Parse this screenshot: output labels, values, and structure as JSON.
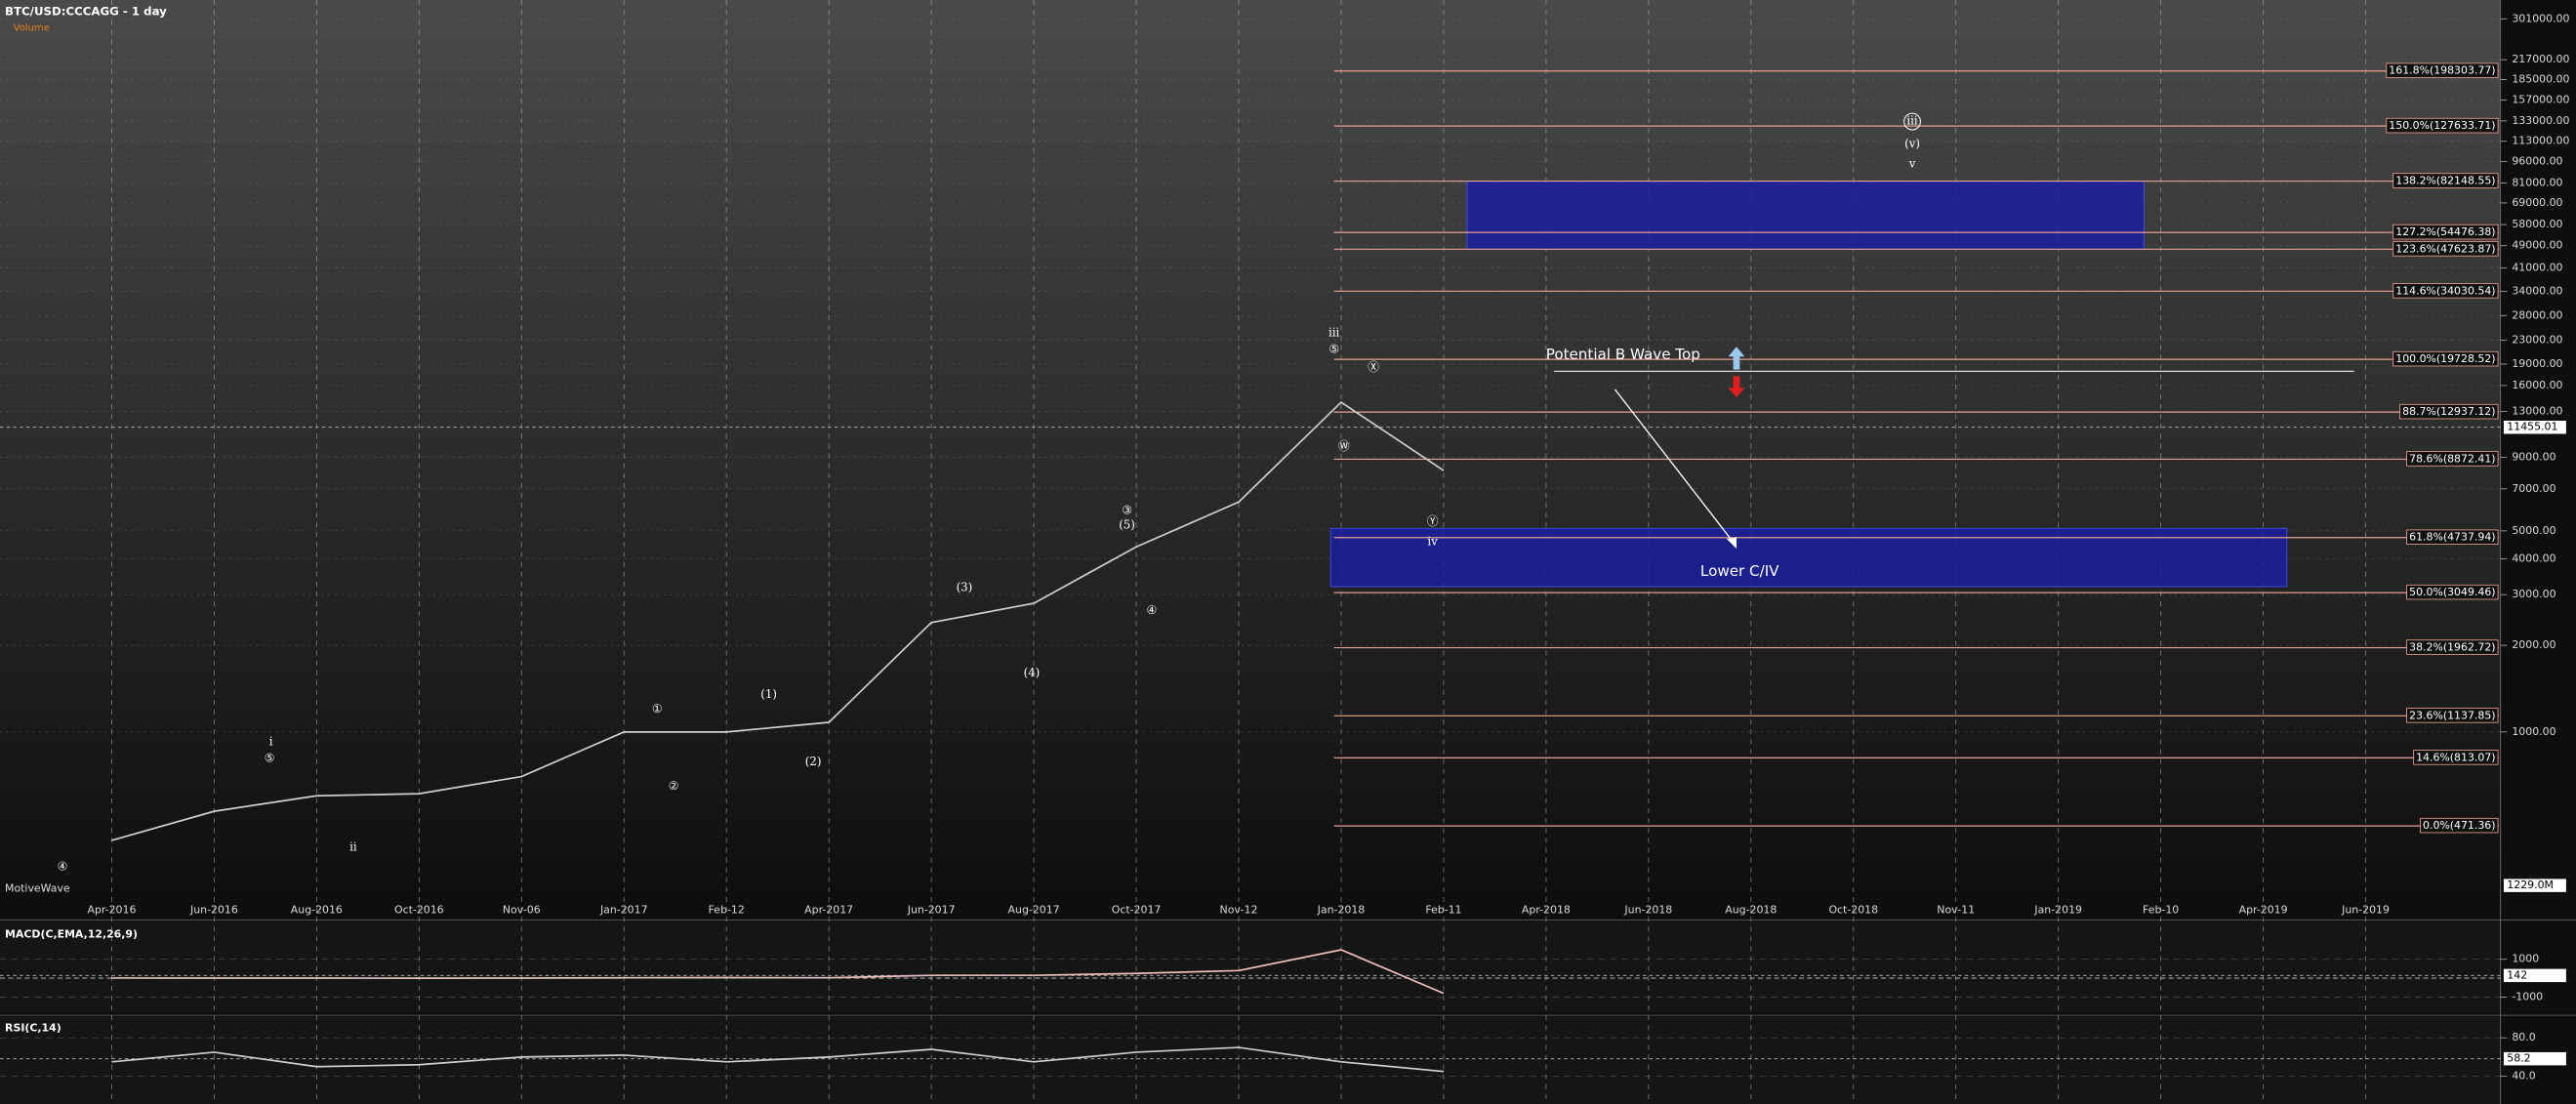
{
  "chart_data": [
    {
      "type": "line",
      "title": "BTC/USD:CCCAGG - 1 day",
      "subtitle": "Volume",
      "watermark": "MotiveWave",
      "categories": [
        "Apr-2016",
        "Jun-2016",
        "Aug-2016",
        "Oct-2016",
        "Nov-06",
        "Jan-2017",
        "Feb-12",
        "Apr-2017",
        "Jun-2017",
        "Aug-2017",
        "Oct-2017",
        "Nov-12",
        "Jan-2018",
        "Feb-11",
        "Apr-2018",
        "Jun-2018",
        "Aug-2018",
        "Oct-2018",
        "Nov-11",
        "Jan-2019",
        "Feb-10",
        "Apr-2019",
        "Jun-2019"
      ],
      "values": [
        420,
        530,
        600,
        610,
        700,
        1000,
        1000,
        1080,
        2400,
        2800,
        4400,
        6300,
        14000,
        8100,
        null,
        null,
        null,
        null,
        null,
        null,
        null,
        null,
        null
      ],
      "color": "#d0d0d0",
      "log_scale": true,
      "grid": true,
      "ylim": [
        260,
        350000
      ],
      "yticks": [
        {
          "value": 301000,
          "label": "301000.00"
        },
        {
          "value": 217000,
          "label": "217000.00"
        },
        {
          "value": 185000,
          "label": "185000.00"
        },
        {
          "value": 157000,
          "label": "157000.00"
        },
        {
          "value": 133000,
          "label": "133000.00"
        },
        {
          "value": 113000,
          "label": "113000.00"
        },
        {
          "value": 96000,
          "label": "96000.00"
        },
        {
          "value": 81000,
          "label": "81000.00"
        },
        {
          "value": 69000,
          "label": "69000.00"
        },
        {
          "value": 58000,
          "label": "58000.00"
        },
        {
          "value": 49000,
          "label": "49000.00"
        },
        {
          "value": 41000,
          "label": "41000.00"
        },
        {
          "value": 34000,
          "label": "34000.00"
        },
        {
          "value": 28000,
          "label": "28000.00"
        },
        {
          "value": 23000,
          "label": "23000.00"
        },
        {
          "value": 19000,
          "label": "19000.00"
        },
        {
          "value": 16000,
          "label": "16000.00"
        },
        {
          "value": 13000,
          "label": "13000.00"
        },
        {
          "value": 9000,
          "label": "9000.00"
        },
        {
          "value": 7000,
          "label": "7000.00"
        },
        {
          "value": 5000,
          "label": "5000.00"
        },
        {
          "value": 4000,
          "label": "4000.00"
        },
        {
          "value": 3000,
          "label": "3000.00"
        },
        {
          "value": 2000,
          "label": "2000.00"
        },
        {
          "value": 1000,
          "label": "1000.00"
        }
      ],
      "fib_levels": [
        {
          "value": 198303.77,
          "label": "161.8%(198303.77)"
        },
        {
          "value": 127633.71,
          "label": "150.0%(127633.71)"
        },
        {
          "value": 82148.55,
          "label": "138.2%(82148.55)"
        },
        {
          "value": 54476.38,
          "label": "127.2%(54476.38)"
        },
        {
          "value": 47623.87,
          "label": "123.6%(47623.87)"
        },
        {
          "value": 34030.54,
          "label": "114.6%(34030.54)"
        },
        {
          "value": 19728.52,
          "label": "100.0%(19728.52)"
        },
        {
          "value": 12937.12,
          "label": "88.7%(12937.12)"
        },
        {
          "value": 8872.41,
          "label": "78.6%(8872.41)"
        },
        {
          "value": 4737.94,
          "label": "61.8%(4737.94)"
        },
        {
          "value": 3049.46,
          "label": "50.0%(3049.46)"
        },
        {
          "value": 1962.72,
          "label": "38.2%(1962.72)"
        },
        {
          "value": 1137.85,
          "label": "23.6%(1137.85)"
        },
        {
          "value": 813.07,
          "label": "14.6%(813.07)"
        },
        {
          "value": 471.36,
          "label": "0.0%(471.36)"
        }
      ],
      "zones": [
        {
          "ylim": [
            47623.87,
            82148.55
          ],
          "color": "#1a1fa0"
        },
        {
          "ylim": [
            3200,
            5100
          ],
          "color": "#1a1fa0"
        }
      ],
      "last_price": 11455.01,
      "volume_label": "1229.0M",
      "annotations": [
        "Potential B Wave Top",
        "Lower C/IV"
      ],
      "wave_labels": [
        "④",
        "i",
        "⑤",
        "ii",
        "①",
        "②",
        "(1)",
        "(2)",
        "(3)",
        "(4)",
        "③",
        "(5)",
        "④",
        "iii",
        "⑤",
        "Ⓧ",
        "Ⓦ",
        "Ⓨ",
        "iv",
        "iii",
        "(v)",
        "v"
      ]
    },
    {
      "type": "line",
      "title": "MACD(C,EMA,12,26,9)",
      "values": [
        10,
        5,
        5,
        0,
        5,
        20,
        30,
        20,
        150,
        150,
        250,
        400,
        1500,
        -800,
        null,
        null,
        null,
        null,
        null,
        null,
        null,
        null,
        null
      ],
      "color": "#f0c0c0",
      "ylim": [
        -1700,
        2900
      ],
      "yticks": [
        1000,
        -1000
      ],
      "last_value": 142
    },
    {
      "type": "line",
      "title": "RSI(C,14)",
      "values": [
        55,
        65,
        50,
        52,
        60,
        62,
        55,
        60,
        68,
        55,
        65,
        70,
        55,
        45,
        null,
        null,
        null,
        null,
        null,
        null,
        null,
        null,
        null
      ],
      "color": "#d0d0d0",
      "ylim": [
        18,
        100
      ],
      "yticks": [
        {
          "value": 80,
          "label": "80.0"
        },
        {
          "value": 40,
          "label": "40.0"
        }
      ],
      "last_value": 58.2
    }
  ]
}
